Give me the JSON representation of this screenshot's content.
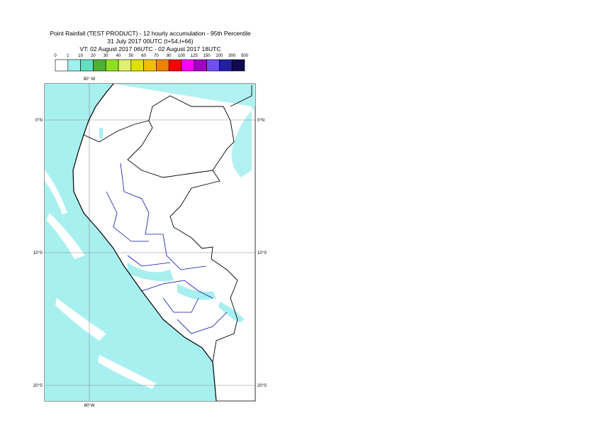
{
  "header": {
    "lines": [
      "Point Rainfall (TEST PRODUCT) - 12 hourly accumulation - 95th Percentile",
      "31 July 2017 00UTC (t+54,t+66)",
      "VT: 02 August 2017 06UTC - 02 August 2017 18UTC"
    ]
  },
  "legend": {
    "labels": [
      "0",
      "1",
      "10",
      "20",
      "30",
      "40",
      "50",
      "60",
      "70",
      "80",
      "100",
      "125",
      "150",
      "200",
      "300",
      "500"
    ],
    "colors": [
      "#ffffff",
      "#a0f0f0",
      "#60e0c0",
      "#50b030",
      "#90e020",
      "#e0f070",
      "#e0e000",
      "#f0c000",
      "#f08000",
      "#ff0000",
      "#ff00ff",
      "#a000c0",
      "#7050f0",
      "#2020a0",
      "#100850"
    ]
  },
  "map": {
    "lon_top": "80° W",
    "lon_bottom": "80°W",
    "lat_left": [
      "0°N",
      "10°S",
      "20°S"
    ],
    "lat_right": [
      "0°N",
      "10°S",
      "20°S"
    ]
  }
}
